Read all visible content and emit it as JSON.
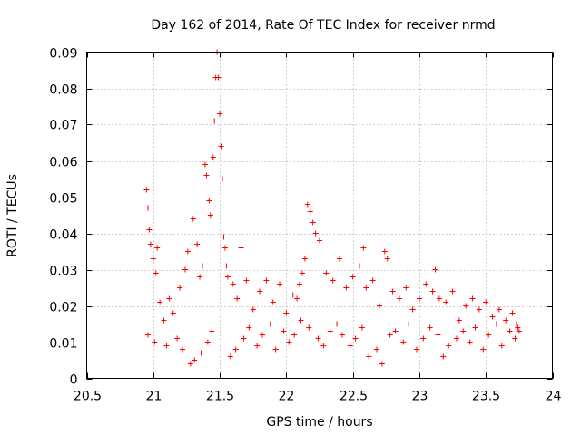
{
  "chart_data": {
    "type": "scatter",
    "title": "Day 162 of 2014, Rate Of TEC Index for receiver nrmd",
    "xlabel": "GPS time / hours",
    "ylabel": "ROTI / TECUs",
    "xlim": [
      20.5,
      24
    ],
    "ylim": [
      0,
      0.09
    ],
    "grid": true,
    "legend": "none",
    "marker": "+",
    "color": "#ff0000",
    "x_ticks": [
      20.5,
      21,
      21.5,
      22,
      22.5,
      23,
      23.5,
      24
    ],
    "x_tick_labels": [
      "20.5",
      "21",
      "21.5",
      "22",
      "22.5",
      "23",
      "23.5",
      "24"
    ],
    "y_ticks": [
      0,
      0.01,
      0.02,
      0.03,
      0.04,
      0.05,
      0.06,
      0.07,
      0.08,
      0.09
    ],
    "y_tick_labels": [
      "0",
      "0.01",
      "0.02",
      "0.03",
      "0.04",
      "0.05",
      "0.06",
      "0.07",
      "0.08",
      "0.09"
    ],
    "x_range_data": [
      20.94,
      23.76
    ],
    "series": [
      {
        "name": "ROTI",
        "x": [
          20.95,
          20.96,
          20.97,
          20.98,
          21.0,
          21.02,
          21.03,
          21.05,
          21.08,
          21.12,
          21.15,
          21.2,
          21.24,
          21.26,
          21.3,
          21.33,
          21.35,
          21.37,
          21.39,
          21.4,
          21.42,
          21.43,
          21.45,
          21.46,
          21.47,
          21.48,
          21.49,
          21.5,
          21.51,
          21.52,
          21.53,
          21.54,
          21.55,
          21.56,
          21.6,
          21.63,
          21.66,
          21.7,
          21.75,
          21.8,
          21.85,
          21.9,
          21.95,
          22.0,
          22.05,
          22.08,
          22.1,
          22.12,
          22.14,
          22.16,
          22.18,
          22.2,
          22.22,
          22.25,
          22.3,
          22.35,
          22.4,
          22.45,
          22.5,
          22.55,
          22.58,
          22.6,
          22.65,
          22.7,
          22.74,
          22.76,
          22.8,
          22.85,
          22.9,
          22.95,
          23.0,
          23.05,
          23.1,
          23.12,
          23.15,
          23.2,
          23.25,
          23.3,
          23.35,
          23.4,
          23.45,
          23.5,
          23.55,
          23.6,
          23.65,
          23.7,
          23.73,
          23.75,
          20.96,
          21.01,
          21.1,
          21.18,
          21.22,
          21.28,
          21.31,
          21.36,
          21.41,
          21.44,
          21.58,
          21.62,
          21.68,
          21.72,
          21.78,
          21.82,
          21.88,
          21.92,
          21.98,
          22.02,
          22.06,
          22.11,
          22.17,
          22.24,
          22.28,
          22.33,
          22.38,
          22.42,
          22.48,
          22.52,
          22.57,
          22.62,
          22.68,
          22.72,
          22.78,
          22.82,
          22.88,
          22.92,
          22.98,
          23.03,
          23.08,
          23.14,
          23.18,
          23.22,
          23.28,
          23.33,
          23.38,
          23.42,
          23.48,
          23.52,
          23.58,
          23.62,
          23.68,
          23.72,
          23.74
        ],
        "y": [
          0.052,
          0.047,
          0.041,
          0.037,
          0.033,
          0.029,
          0.036,
          0.021,
          0.016,
          0.022,
          0.018,
          0.025,
          0.03,
          0.035,
          0.044,
          0.037,
          0.028,
          0.031,
          0.059,
          0.056,
          0.049,
          0.045,
          0.061,
          0.071,
          0.083,
          0.09,
          0.083,
          0.073,
          0.064,
          0.055,
          0.039,
          0.036,
          0.031,
          0.028,
          0.026,
          0.022,
          0.036,
          0.027,
          0.019,
          0.024,
          0.027,
          0.021,
          0.026,
          0.018,
          0.023,
          0.022,
          0.026,
          0.029,
          0.033,
          0.048,
          0.046,
          0.043,
          0.04,
          0.038,
          0.029,
          0.027,
          0.033,
          0.025,
          0.028,
          0.031,
          0.036,
          0.025,
          0.027,
          0.02,
          0.035,
          0.033,
          0.024,
          0.022,
          0.025,
          0.019,
          0.022,
          0.026,
          0.024,
          0.03,
          0.022,
          0.021,
          0.024,
          0.016,
          0.02,
          0.022,
          0.019,
          0.021,
          0.017,
          0.019,
          0.016,
          0.018,
          0.015,
          0.013,
          0.012,
          0.01,
          0.009,
          0.011,
          0.008,
          0.004,
          0.005,
          0.007,
          0.01,
          0.013,
          0.006,
          0.008,
          0.011,
          0.014,
          0.009,
          0.012,
          0.015,
          0.008,
          0.013,
          0.01,
          0.012,
          0.016,
          0.014,
          0.011,
          0.009,
          0.013,
          0.015,
          0.012,
          0.009,
          0.011,
          0.014,
          0.006,
          0.008,
          0.004,
          0.012,
          0.013,
          0.01,
          0.015,
          0.008,
          0.011,
          0.014,
          0.012,
          0.006,
          0.009,
          0.011,
          0.013,
          0.01,
          0.014,
          0.008,
          0.012,
          0.015,
          0.009,
          0.013,
          0.011,
          0.014
        ]
      }
    ]
  }
}
